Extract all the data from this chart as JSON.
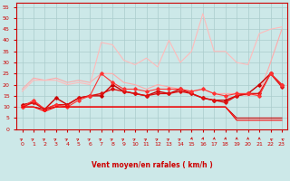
{
  "xlabel": "Vent moyen/en rafales ( km/h )",
  "bg_color": "#cce8e8",
  "grid_color": "#aacccc",
  "line_color": "#cc0000",
  "xlim": [
    -0.5,
    23.5
  ],
  "ylim": [
    0,
    57
  ],
  "yticks": [
    0,
    5,
    10,
    15,
    20,
    25,
    30,
    35,
    40,
    45,
    50,
    55
  ],
  "xticks": [
    0,
    1,
    2,
    3,
    4,
    5,
    6,
    7,
    8,
    9,
    10,
    11,
    12,
    13,
    14,
    15,
    16,
    17,
    18,
    19,
    20,
    21,
    22,
    23
  ],
  "lines": [
    {
      "x": [
        0,
        1,
        2,
        3,
        4,
        5,
        6,
        7,
        8,
        9,
        10,
        11,
        12,
        13,
        14,
        15,
        16,
        17,
        18,
        19,
        20,
        21,
        22,
        23
      ],
      "y": [
        18,
        23,
        22,
        23,
        21,
        22,
        21,
        25,
        25,
        21,
        20,
        18,
        20,
        19,
        18,
        17,
        18,
        16,
        16,
        16,
        15,
        16,
        30,
        45
      ],
      "color": "#ffaaaa",
      "lw": 0.8
    },
    {
      "x": [
        0,
        1,
        2,
        3,
        4,
        5,
        6,
        7,
        8,
        9,
        10,
        11,
        12,
        13,
        14,
        15,
        16,
        17,
        18,
        19,
        20,
        21,
        22,
        23
      ],
      "y": [
        17,
        22,
        22,
        22,
        20,
        21,
        20,
        39,
        38,
        31,
        29,
        32,
        28,
        40,
        30,
        35,
        52,
        35,
        35,
        30,
        29,
        43,
        45,
        46
      ],
      "color": "#ffbbbb",
      "lw": 0.8
    },
    {
      "x": [
        0,
        1,
        2,
        3,
        4,
        5,
        6,
        7,
        8,
        9,
        10,
        11,
        12,
        13,
        14,
        15,
        16,
        17,
        18,
        19,
        20,
        21,
        22,
        23
      ],
      "y": [
        11,
        12,
        9,
        14,
        11,
        14,
        15,
        15,
        20,
        17,
        16,
        15,
        17,
        16,
        18,
        16,
        14,
        13,
        13,
        15,
        16,
        20,
        25,
        20
      ],
      "color": "#cc0000",
      "lw": 1.0,
      "marker": true
    },
    {
      "x": [
        0,
        1,
        2,
        3,
        4,
        5,
        6,
        7,
        8,
        9,
        10,
        11,
        12,
        13,
        14,
        15,
        16,
        17,
        18,
        19,
        20,
        21,
        22,
        23
      ],
      "y": [
        10,
        12,
        9,
        11,
        11,
        14,
        15,
        16,
        18,
        17,
        16,
        15,
        16,
        16,
        17,
        16,
        14,
        13,
        12,
        15,
        16,
        16,
        25,
        19
      ],
      "color": "#dd1111",
      "lw": 1.0,
      "marker": true
    },
    {
      "x": [
        0,
        1,
        2,
        3,
        4,
        5,
        6,
        7,
        8,
        9,
        10,
        11,
        12,
        13,
        14,
        15,
        16,
        17,
        18,
        19,
        20,
        21,
        22,
        23
      ],
      "y": [
        10,
        13,
        9,
        11,
        10,
        13,
        15,
        25,
        21,
        18,
        18,
        17,
        18,
        18,
        18,
        17,
        18,
        16,
        15,
        16,
        16,
        15,
        25,
        20
      ],
      "color": "#ff3333",
      "lw": 0.8,
      "marker": true
    },
    {
      "x": [
        0,
        1,
        2,
        3,
        4,
        5,
        6,
        7,
        8,
        9,
        10,
        11,
        12,
        13,
        14,
        15,
        16,
        17,
        18,
        19,
        20,
        21,
        22,
        23
      ],
      "y": [
        10,
        10,
        9,
        10,
        10,
        10,
        10,
        10,
        10,
        10,
        10,
        10,
        10,
        10,
        10,
        10,
        10,
        10,
        10,
        5,
        5,
        5,
        5,
        5
      ],
      "color": "#cc0000",
      "lw": 0.8
    },
    {
      "x": [
        0,
        1,
        2,
        3,
        4,
        5,
        6,
        7,
        8,
        9,
        10,
        11,
        12,
        13,
        14,
        15,
        16,
        17,
        18,
        19,
        20,
        21,
        22,
        23
      ],
      "y": [
        10,
        10,
        8,
        10,
        10,
        10,
        10,
        10,
        10,
        10,
        10,
        10,
        10,
        10,
        10,
        10,
        10,
        10,
        10,
        4,
        4,
        4,
        4,
        4
      ],
      "color": "#ff0000",
      "lw": 0.8
    }
  ],
  "arrows": {
    "angles": [
      45,
      45,
      45,
      45,
      45,
      45,
      45,
      45,
      45,
      45,
      45,
      45,
      45,
      45,
      45,
      10,
      10,
      5,
      5,
      0,
      0,
      0,
      315,
      315
    ]
  }
}
